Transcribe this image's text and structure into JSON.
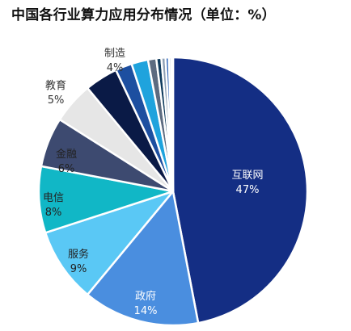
{
  "chart_data": {
    "type": "pie",
    "title": "中国各行业算力应用分布情况（单位：%）",
    "categories": [
      "互联网",
      "政府",
      "服务",
      "电信",
      "金融",
      "教育",
      "制造",
      "",
      "",
      "",
      "",
      "",
      "",
      "",
      ""
    ],
    "values": [
      47,
      14,
      9,
      8,
      6,
      5,
      4,
      2,
      2,
      1,
      0.6,
      0.5,
      0.4,
      0.3,
      0.2
    ],
    "value_labels": [
      "47%",
      "14%",
      "9%",
      "8%",
      "6%",
      "5%",
      "4%",
      "",
      "",
      "",
      "",
      "",
      "",
      "",
      ""
    ],
    "colors": [
      "#142E84",
      "#4A8EDF",
      "#5AC8F5",
      "#11B7C6",
      "#3D4A70",
      "#E6E6E6",
      "#0A1A46",
      "#1D4FA0",
      "#1FA3DD",
      "#5C6B80",
      "#0E3A5C",
      "#8FA0B5",
      "#2A62B8",
      "#C8D2DE",
      "#233870"
    ],
    "label_colors": [
      "#ffffff",
      "#ffffff",
      "#222222",
      "#222222",
      "#222222",
      "#333333",
      "#333333",
      "",
      "",
      "",
      "",
      "",
      "",
      "",
      ""
    ],
    "start_angle_deg": 0,
    "direction": "clockwise",
    "legend": "none"
  }
}
